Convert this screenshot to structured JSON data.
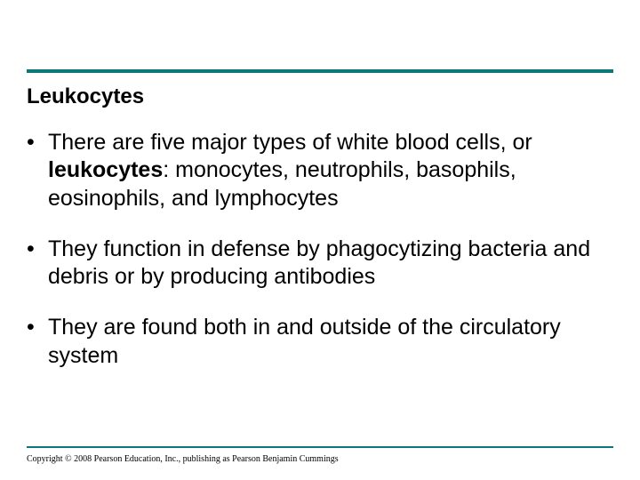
{
  "slide": {
    "title": "Leukocytes",
    "bullets": [
      {
        "prefix": "There are five major types of white blood cells, or ",
        "bold": "leukocytes",
        "suffix": ": monocytes, neutrophils, basophils, eosinophils, and lymphocytes"
      },
      {
        "prefix": "They function in defense by phagocytizing bacteria and debris or by producing antibodies",
        "bold": "",
        "suffix": ""
      },
      {
        "prefix": "They are found both in and outside of the circulatory system",
        "bold": "",
        "suffix": ""
      }
    ],
    "copyright": "Copyright © 2008 Pearson Education, Inc., publishing as Pearson Benjamin Cummings"
  },
  "style": {
    "rule_color": "#0e7777",
    "background_color": "#ffffff",
    "title_fontsize": 24,
    "body_fontsize": 25,
    "copyright_fontsize": 10,
    "text_color": "#000000"
  }
}
